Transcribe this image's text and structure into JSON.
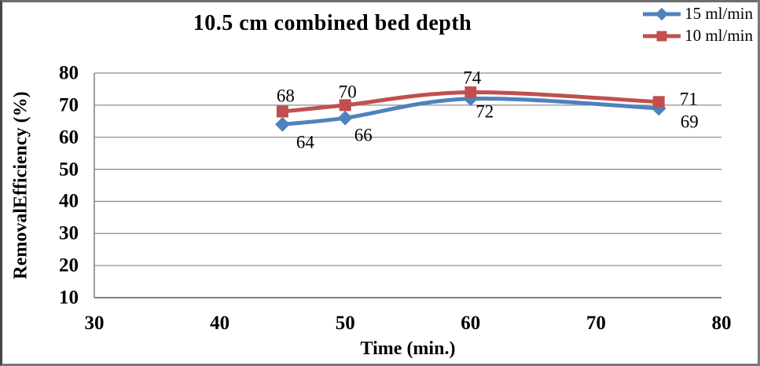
{
  "window": {
    "background": "#ffffff",
    "frame_border_color": "#787878"
  },
  "chart_data": {
    "type": "line",
    "title": "10.5 cm combined bed depth",
    "xlabel": "Time (min.)",
    "ylabel": "RemovalEfficiency (%)",
    "xlim": [
      30,
      80
    ],
    "ylim": [
      10,
      80
    ],
    "x_ticks": [
      30,
      40,
      50,
      60,
      70,
      80
    ],
    "y_ticks": [
      10,
      20,
      30,
      40,
      50,
      60,
      70,
      80
    ],
    "grid": "horizontal-major",
    "gridline_color": "#8e8e8e",
    "axis_line_color": "#595959",
    "smoothed_lines": true,
    "data_labels_shown": true,
    "legend_position": "top-right",
    "x": [
      45,
      50,
      60,
      75
    ],
    "series": [
      {
        "name": "15 ml/min",
        "color": "#4f81bd",
        "marker": "diamond",
        "values": [
          64,
          66,
          72,
          69
        ]
      },
      {
        "name": "10 ml/min",
        "color": "#c0504d",
        "marker": "square",
        "values": [
          68,
          70,
          74,
          71
        ]
      }
    ]
  }
}
